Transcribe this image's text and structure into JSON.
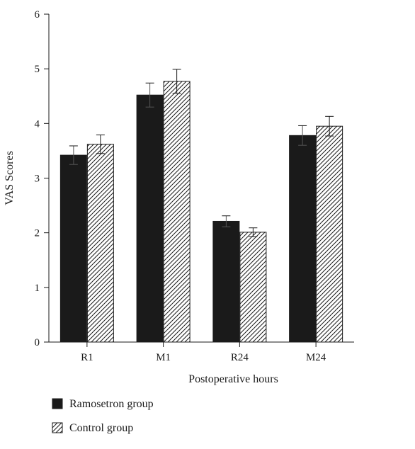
{
  "chart_data": {
    "type": "bar",
    "xlabel": "Postoperative hours",
    "ylabel": "VAS Scores",
    "categories": [
      "R1",
      "M1",
      "R24",
      "M24"
    ],
    "ylim": [
      0,
      6
    ],
    "yticks": [
      0,
      1,
      2,
      3,
      4,
      5,
      6
    ],
    "series": [
      {
        "name": "Ramosetron group",
        "values": [
          3.42,
          4.52,
          2.21,
          3.78
        ],
        "errors": [
          0.17,
          0.22,
          0.1,
          0.18
        ],
        "color": "#1a1a1a",
        "pattern": "solid"
      },
      {
        "name": "Control group",
        "values": [
          3.62,
          4.77,
          2.01,
          3.95
        ],
        "errors": [
          0.17,
          0.22,
          0.08,
          0.18
        ],
        "color": "#1a1a1a",
        "pattern": "diagonal-hatch"
      }
    ],
    "legend": {
      "placement": "bottom-left",
      "items": [
        "Ramosetron group",
        "Control group"
      ]
    },
    "grid": false
  }
}
